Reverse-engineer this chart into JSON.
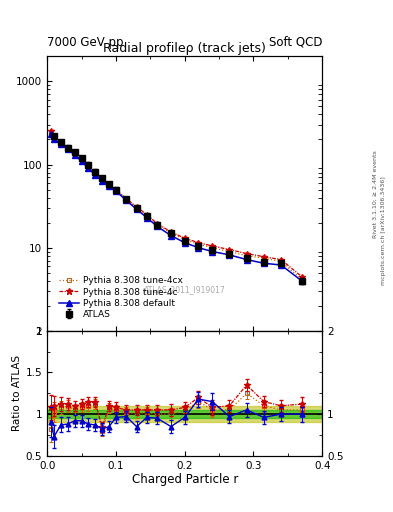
{
  "title_main": "Radial profileρ (track jets)",
  "top_left_label": "7000 GeV pp",
  "top_right_label": "Soft QCD",
  "watermark": "ATLAS_2011_I919017",
  "xlabel": "Charged Particle r",
  "ylabel_ratio": "Ratio to ATLAS",
  "right_label_1": "Rivet 3.1.10; ≥ 2.4M events",
  "right_label_2": "mcplots.cern.ch [arXiv:1306.3436]",
  "atlas_x": [
    0.01,
    0.02,
    0.03,
    0.04,
    0.05,
    0.06,
    0.07,
    0.08,
    0.09,
    0.1,
    0.115,
    0.13,
    0.145,
    0.16,
    0.18,
    0.2,
    0.22,
    0.24,
    0.265,
    0.29,
    0.315,
    0.34,
    0.37
  ],
  "atlas_y": [
    220,
    185,
    160,
    140,
    120,
    100,
    82,
    68,
    58,
    50,
    38,
    30,
    24,
    19,
    15,
    12,
    10.5,
    9.5,
    8.5,
    7.5,
    6.8,
    6.5,
    4.0
  ],
  "atlas_yerr": [
    15,
    12,
    10,
    9,
    8,
    7,
    6,
    5,
    4,
    3.5,
    2.5,
    2.0,
    1.5,
    1.2,
    1.0,
    0.8,
    0.7,
    0.6,
    0.6,
    0.5,
    0.5,
    0.4,
    0.3
  ],
  "pythia_default_x": [
    0.005,
    0.01,
    0.02,
    0.03,
    0.04,
    0.05,
    0.06,
    0.07,
    0.08,
    0.09,
    0.1,
    0.115,
    0.13,
    0.145,
    0.16,
    0.18,
    0.2,
    0.22,
    0.24,
    0.265,
    0.29,
    0.315,
    0.34,
    0.37
  ],
  "pythia_default_y": [
    230,
    200,
    175,
    155,
    130,
    110,
    90,
    75,
    64,
    55,
    48,
    37,
    29,
    23,
    18,
    14,
    11.5,
    10.0,
    9.0,
    8.2,
    7.2,
    6.5,
    6.2,
    4.0
  ],
  "pythia_4c_x": [
    0.005,
    0.01,
    0.02,
    0.03,
    0.04,
    0.05,
    0.06,
    0.07,
    0.08,
    0.09,
    0.1,
    0.115,
    0.13,
    0.145,
    0.16,
    0.18,
    0.2,
    0.22,
    0.24,
    0.265,
    0.29,
    0.315,
    0.34,
    0.37
  ],
  "pythia_4c_y": [
    250,
    210,
    180,
    158,
    132,
    112,
    93,
    77,
    66,
    57,
    50,
    39,
    31,
    25,
    19.5,
    15.5,
    13.0,
    11.5,
    10.5,
    9.5,
    8.5,
    7.8,
    7.2,
    4.5
  ],
  "pythia_4cx_x": [
    0.005,
    0.01,
    0.02,
    0.03,
    0.04,
    0.05,
    0.06,
    0.07,
    0.08,
    0.09,
    0.1,
    0.115,
    0.13,
    0.145,
    0.16,
    0.18,
    0.2,
    0.22,
    0.24,
    0.265,
    0.29,
    0.315,
    0.34,
    0.37
  ],
  "pythia_4cx_y": [
    245,
    205,
    178,
    156,
    130,
    110,
    91,
    76,
    65,
    56,
    49,
    38,
    30.5,
    24.5,
    19.0,
    15.0,
    12.5,
    11.0,
    10.0,
    9.0,
    8.0,
    7.5,
    6.8,
    4.2
  ],
  "ratio_default_x": [
    0.005,
    0.01,
    0.02,
    0.03,
    0.04,
    0.05,
    0.06,
    0.07,
    0.08,
    0.09,
    0.1,
    0.115,
    0.13,
    0.145,
    0.16,
    0.18,
    0.2,
    0.22,
    0.24,
    0.265,
    0.29,
    0.315,
    0.34,
    0.37
  ],
  "ratio_default_y": [
    0.91,
    0.73,
    0.87,
    0.88,
    0.92,
    0.92,
    0.88,
    0.87,
    0.82,
    0.85,
    0.96,
    0.97,
    0.85,
    0.96,
    0.95,
    0.85,
    0.96,
    1.18,
    1.15,
    0.97,
    1.05,
    0.96,
    1.0,
    1.0
  ],
  "ratio_default_yerr": [
    0.18,
    0.14,
    0.09,
    0.08,
    0.07,
    0.07,
    0.07,
    0.07,
    0.07,
    0.07,
    0.07,
    0.07,
    0.07,
    0.07,
    0.07,
    0.08,
    0.08,
    0.09,
    0.1,
    0.08,
    0.08,
    0.08,
    0.08,
    0.09
  ],
  "ratio_4c_x": [
    0.005,
    0.01,
    0.02,
    0.03,
    0.04,
    0.05,
    0.06,
    0.07,
    0.08,
    0.09,
    0.1,
    0.115,
    0.13,
    0.145,
    0.16,
    0.18,
    0.2,
    0.22,
    0.24,
    0.265,
    0.29,
    0.315,
    0.34,
    0.37
  ],
  "ratio_4c_y": [
    1.08,
    1.1,
    1.12,
    1.12,
    1.1,
    1.12,
    1.14,
    1.14,
    0.84,
    1.1,
    1.08,
    1.05,
    1.05,
    1.05,
    1.05,
    1.05,
    1.08,
    1.2,
    1.08,
    1.1,
    1.35,
    1.15,
    1.1,
    1.12
  ],
  "ratio_4c_yerr": [
    0.15,
    0.12,
    0.08,
    0.07,
    0.06,
    0.06,
    0.06,
    0.06,
    0.06,
    0.06,
    0.06,
    0.06,
    0.06,
    0.06,
    0.06,
    0.07,
    0.07,
    0.08,
    0.09,
    0.07,
    0.07,
    0.07,
    0.07,
    0.08
  ],
  "ratio_4cx_x": [
    0.005,
    0.01,
    0.02,
    0.03,
    0.04,
    0.05,
    0.06,
    0.07,
    0.08,
    0.09,
    0.1,
    0.115,
    0.13,
    0.145,
    0.16,
    0.18,
    0.2,
    0.22,
    0.24,
    0.265,
    0.29,
    0.315,
    0.34,
    0.37
  ],
  "ratio_4cx_y": [
    0.82,
    1.02,
    1.08,
    1.1,
    1.05,
    1.08,
    1.1,
    1.12,
    0.8,
    1.07,
    1.05,
    1.02,
    1.01,
    1.02,
    1.0,
    1.0,
    1.04,
    1.15,
    1.05,
    1.05,
    1.25,
    1.1,
    1.05,
    1.05
  ],
  "ratio_4cx_yerr": [
    0.15,
    0.12,
    0.08,
    0.07,
    0.06,
    0.06,
    0.06,
    0.06,
    0.06,
    0.06,
    0.06,
    0.06,
    0.06,
    0.06,
    0.06,
    0.07,
    0.07,
    0.08,
    0.09,
    0.07,
    0.07,
    0.07,
    0.07,
    0.08
  ],
  "atlas_ratio_err_inner": 0.05,
  "atlas_ratio_err_outer": 0.1,
  "color_atlas": "#000000",
  "color_default": "#0000cc",
  "color_4c": "#cc0000",
  "color_4cx": "#cc6600",
  "color_green_band": "#00bb00",
  "color_yellow_band": "#bbbb00",
  "xlim": [
    0.0,
    0.4
  ],
  "ylim_main": [
    1.0,
    2000.0
  ],
  "ylim_ratio": [
    0.5,
    2.0
  ],
  "legend_entries": [
    "ATLAS",
    "Pythia 8.308 default",
    "Pythia 8.308 tune-4c",
    "Pythia 8.308 tune-4cx"
  ]
}
